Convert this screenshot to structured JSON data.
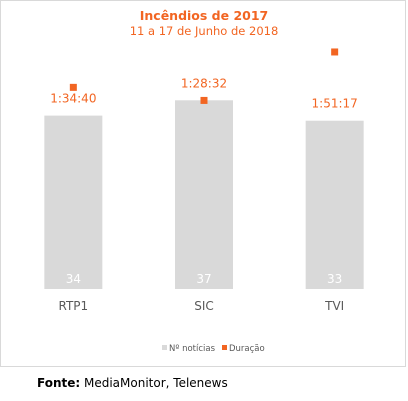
{
  "chart_data": {
    "type": "bar",
    "title": "Incêndios de 2017",
    "subtitle": "11 a 17 de Junho de 2018",
    "categories": [
      "RTP1",
      "SIC",
      "TVI"
    ],
    "series": [
      {
        "name": "Nº notícias",
        "type": "bar",
        "values": [
          34,
          37,
          33
        ],
        "color": "#d9d9d9"
      },
      {
        "name": "Duração",
        "type": "marker",
        "values_seconds": [
          5680,
          5312,
          6677
        ],
        "labels": [
          "1:34:40",
          "1:28:32",
          "1:51:17"
        ],
        "color": "#f26522"
      }
    ],
    "bar_axis": {
      "min": 0,
      "max": 40
    },
    "duration_axis": {
      "min": 0,
      "max": 8000
    },
    "grid": false,
    "legend": {
      "position": "bottom"
    }
  },
  "colors": {
    "accent": "#f26522",
    "bar": "#d9d9d9"
  },
  "source": {
    "label": "Fonte:",
    "text": " MediaMonitor, Telenews"
  }
}
